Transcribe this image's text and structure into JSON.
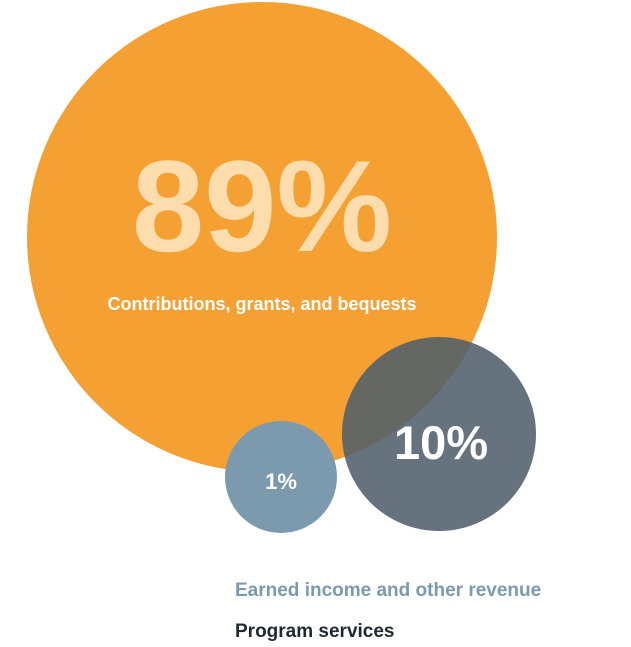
{
  "chart_data": {
    "type": "bubble",
    "series": [
      {
        "label": "Contributions, grants, and bequests",
        "value_label": "89%",
        "value": 89,
        "color": "#F5A033",
        "text_color": "#FDDCAE",
        "label_color": "#FFFFFF"
      },
      {
        "label": "Program services",
        "value_label": "10%",
        "value": 10,
        "color": "#4F5E6B",
        "text_color": "#FFFFFF"
      },
      {
        "label": "Earned income and other revenue",
        "value_label": "1%",
        "value": 1,
        "color": "#7B9AAE",
        "text_color": "#FFFFFF"
      }
    ]
  },
  "legend": {
    "earned_income": "Earned income and other revenue",
    "program_services": "Program services",
    "earned_color": "#7B9AAE",
    "program_color": "#1F2A30"
  }
}
